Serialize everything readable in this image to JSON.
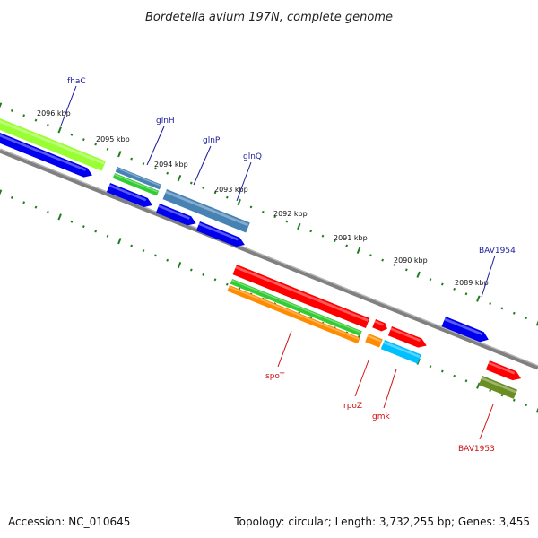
{
  "title": "Bordetella avium 197N, complete genome",
  "footer": {
    "accession": "Accession: NC_010645",
    "summary": "Topology: circular; Length: 3,732,255 bp; Genes: 3,455"
  },
  "ticks": [
    "2096 kbp",
    "2095 kbp",
    "2094 kbp",
    "2093 kbp",
    "2092 kbp",
    "2091 kbp",
    "2090 kbp",
    "2089 kbp"
  ],
  "gene_labels_plus": [
    "fhaC",
    "glnH",
    "glnP",
    "glnQ",
    "BAV1954"
  ],
  "gene_labels_minus": [
    "spoT",
    "rpoZ",
    "gmk",
    "BAV1953"
  ],
  "colors": {
    "backbone": "#808080",
    "tick": "#1e7d1e",
    "cds": "#0000ee",
    "cog_blue": "#4682b4",
    "cog_green": "#33cc33",
    "cog_lime": "#99ff33",
    "cog_red": "#ff0000",
    "cog_orange": "#ff8c00",
    "cog_cyan": "#00bfff",
    "cog_olive": "#6b8e23",
    "label_plus": "#1a1a9c",
    "label_minus": "#cc1111"
  }
}
